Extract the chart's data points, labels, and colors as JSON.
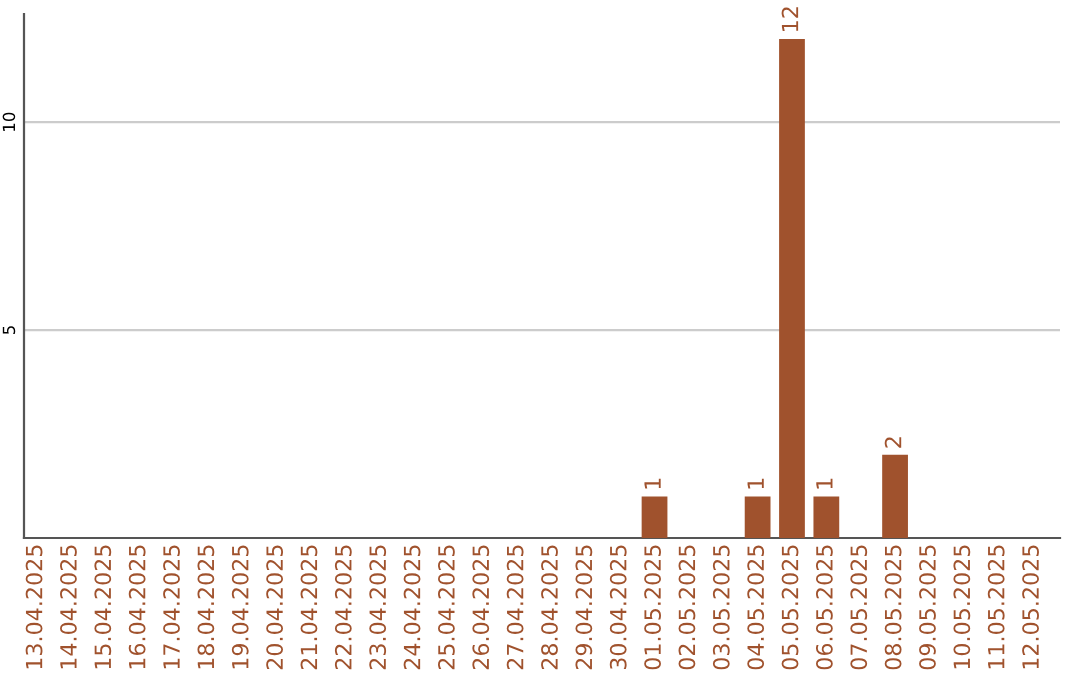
{
  "chart_data": {
    "type": "bar",
    "categories": [
      "13.04.2025",
      "14.04.2025",
      "15.04.2025",
      "16.04.2025",
      "17.04.2025",
      "18.04.2025",
      "19.04.2025",
      "20.04.2025",
      "21.04.2025",
      "22.04.2025",
      "23.04.2025",
      "24.04.2025",
      "25.04.2025",
      "26.04.2025",
      "27.04.2025",
      "28.04.2025",
      "29.04.2025",
      "30.04.2025",
      "01.05.2025",
      "02.05.2025",
      "03.05.2025",
      "04.05.2025",
      "05.05.2025",
      "06.05.2025",
      "07.05.2025",
      "08.05.2025",
      "09.05.2025",
      "10.05.2025",
      "11.05.2025",
      "12.05.2025"
    ],
    "values": [
      0,
      0,
      0,
      0,
      0,
      0,
      0,
      0,
      0,
      0,
      0,
      0,
      0,
      0,
      0,
      0,
      0,
      0,
      1,
      0,
      0,
      1,
      12,
      1,
      0,
      2,
      0,
      0,
      0,
      0
    ],
    "value_labels": [
      null,
      null,
      null,
      null,
      null,
      null,
      null,
      null,
      null,
      null,
      null,
      null,
      null,
      null,
      null,
      null,
      null,
      null,
      "1",
      null,
      null,
      "1",
      "12",
      "1",
      null,
      "2",
      null,
      null,
      null,
      null
    ],
    "color": "#a0522d",
    "ylim": [
      0,
      12.6
    ],
    "yticks": [
      {
        "value": 0,
        "label": null
      },
      5,
      10
    ],
    "grid": "y"
  }
}
